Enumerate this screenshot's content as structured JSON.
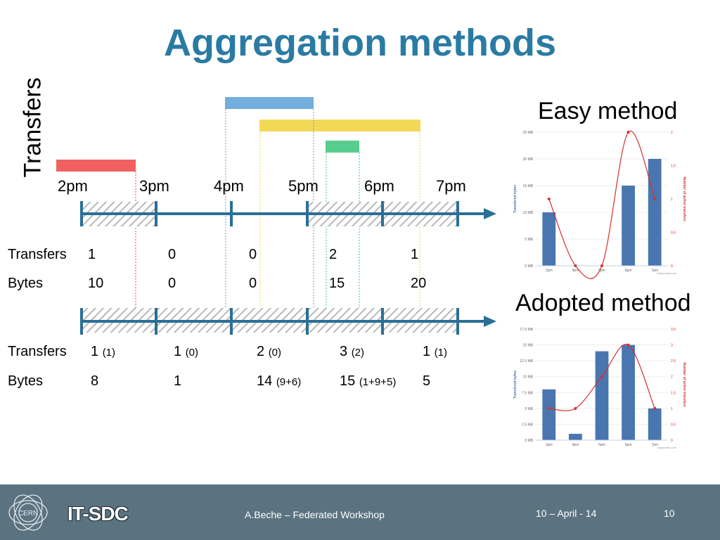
{
  "slide": {
    "title": "Aggregation methods",
    "y_axis_label": "Transfers",
    "time_labels": [
      "2pm",
      "3pm",
      "4pm",
      "5pm",
      "6pm",
      "7pm"
    ],
    "transfer_bars": [
      {
        "color": "#ee4444",
        "from": "2pm",
        "to": "3pm"
      },
      {
        "color": "#5aa0d8",
        "from": "4pm",
        "to": "5pm"
      },
      {
        "color": "#f2d23a",
        "from": "4:20pm",
        "to": "6:30pm"
      },
      {
        "color": "#3cc47a",
        "from": "5:15pm",
        "to": "5:45pm"
      }
    ],
    "easy_table": {
      "transfers_label": "Transfers",
      "bytes_label": "Bytes",
      "transfers": [
        "1",
        "0",
        "0",
        "2",
        "1"
      ],
      "bytes": [
        "10",
        "0",
        "0",
        "15",
        "20"
      ]
    },
    "adopted_table": {
      "transfers_label": "Transfers",
      "bytes_label": "Bytes",
      "transfers": [
        {
          "v": "1",
          "n": "(1)"
        },
        {
          "v": "1",
          "n": "(0)"
        },
        {
          "v": "2",
          "n": "(0)"
        },
        {
          "v": "3",
          "n": "(2)"
        },
        {
          "v": "1",
          "n": "(1)"
        }
      ],
      "bytes": [
        {
          "v": "8",
          "n": ""
        },
        {
          "v": "1",
          "n": ""
        },
        {
          "v": "14",
          "n": "(9+6)"
        },
        {
          "v": "15",
          "n": "(1+9+5)"
        },
        {
          "v": "5",
          "n": ""
        }
      ]
    },
    "easy_method_title": "Easy method",
    "adopted_method_title": "Adopted method"
  },
  "footer": {
    "org": "CERN",
    "group": "IT-SDC",
    "author": "A.Beche – Federated Workshop",
    "date": "10 – April - 14",
    "page": "10"
  },
  "colors": {
    "title": "#2a7ba3",
    "timeline": "#2a6f97",
    "bar": "#4a76b0",
    "line": "#d62f2f",
    "footer": "#5b7380"
  },
  "chart_data": [
    {
      "type": "bar",
      "title": "Easy method",
      "categories": [
        "3pm",
        "4pm",
        "5pm",
        "6pm",
        "7pm"
      ],
      "series": [
        {
          "name": "Transfered bytes",
          "values": [
            10,
            0,
            0,
            15,
            20
          ]
        },
        {
          "name": "Number of active transfers",
          "values": [
            1,
            0,
            0,
            2,
            1
          ]
        }
      ],
      "ylabel": "Transfered bytes",
      "y2label": "Number of active transfers",
      "ylim": [
        0,
        25
      ],
      "y_ticks": [
        "0 MB",
        "5 MB",
        "10 MB",
        "15 MB",
        "20 MB",
        "25 MB"
      ],
      "y2lim": [
        0,
        2
      ],
      "y2_ticks": [
        "0",
        "0.5",
        "1",
        "1.5",
        "2"
      ],
      "credit": "Highcharts.com"
    },
    {
      "type": "bar",
      "title": "Adopted method",
      "categories": [
        "3pm",
        "4pm",
        "5pm",
        "6pm",
        "7pm"
      ],
      "series": [
        {
          "name": "Transfered bytes",
          "values": [
            8,
            1,
            14,
            15,
            5
          ]
        },
        {
          "name": "Number of active transfers",
          "values": [
            1,
            1,
            2,
            3,
            1
          ]
        }
      ],
      "ylabel": "Transfered bytes",
      "y2label": "Number of active transfers",
      "ylim": [
        0,
        17.5
      ],
      "y_ticks": [
        "0 MB",
        "2.5 MB",
        "5 MB",
        "7.5 MB",
        "10 MB",
        "12.5 MB",
        "15 MB",
        "17.5 MB"
      ],
      "y2lim": [
        0,
        3.5
      ],
      "y2_ticks": [
        "0",
        "0.5",
        "1",
        "1.5",
        "2",
        "2.5",
        "3",
        "3.5"
      ],
      "credit": "Highcharts.com"
    }
  ]
}
